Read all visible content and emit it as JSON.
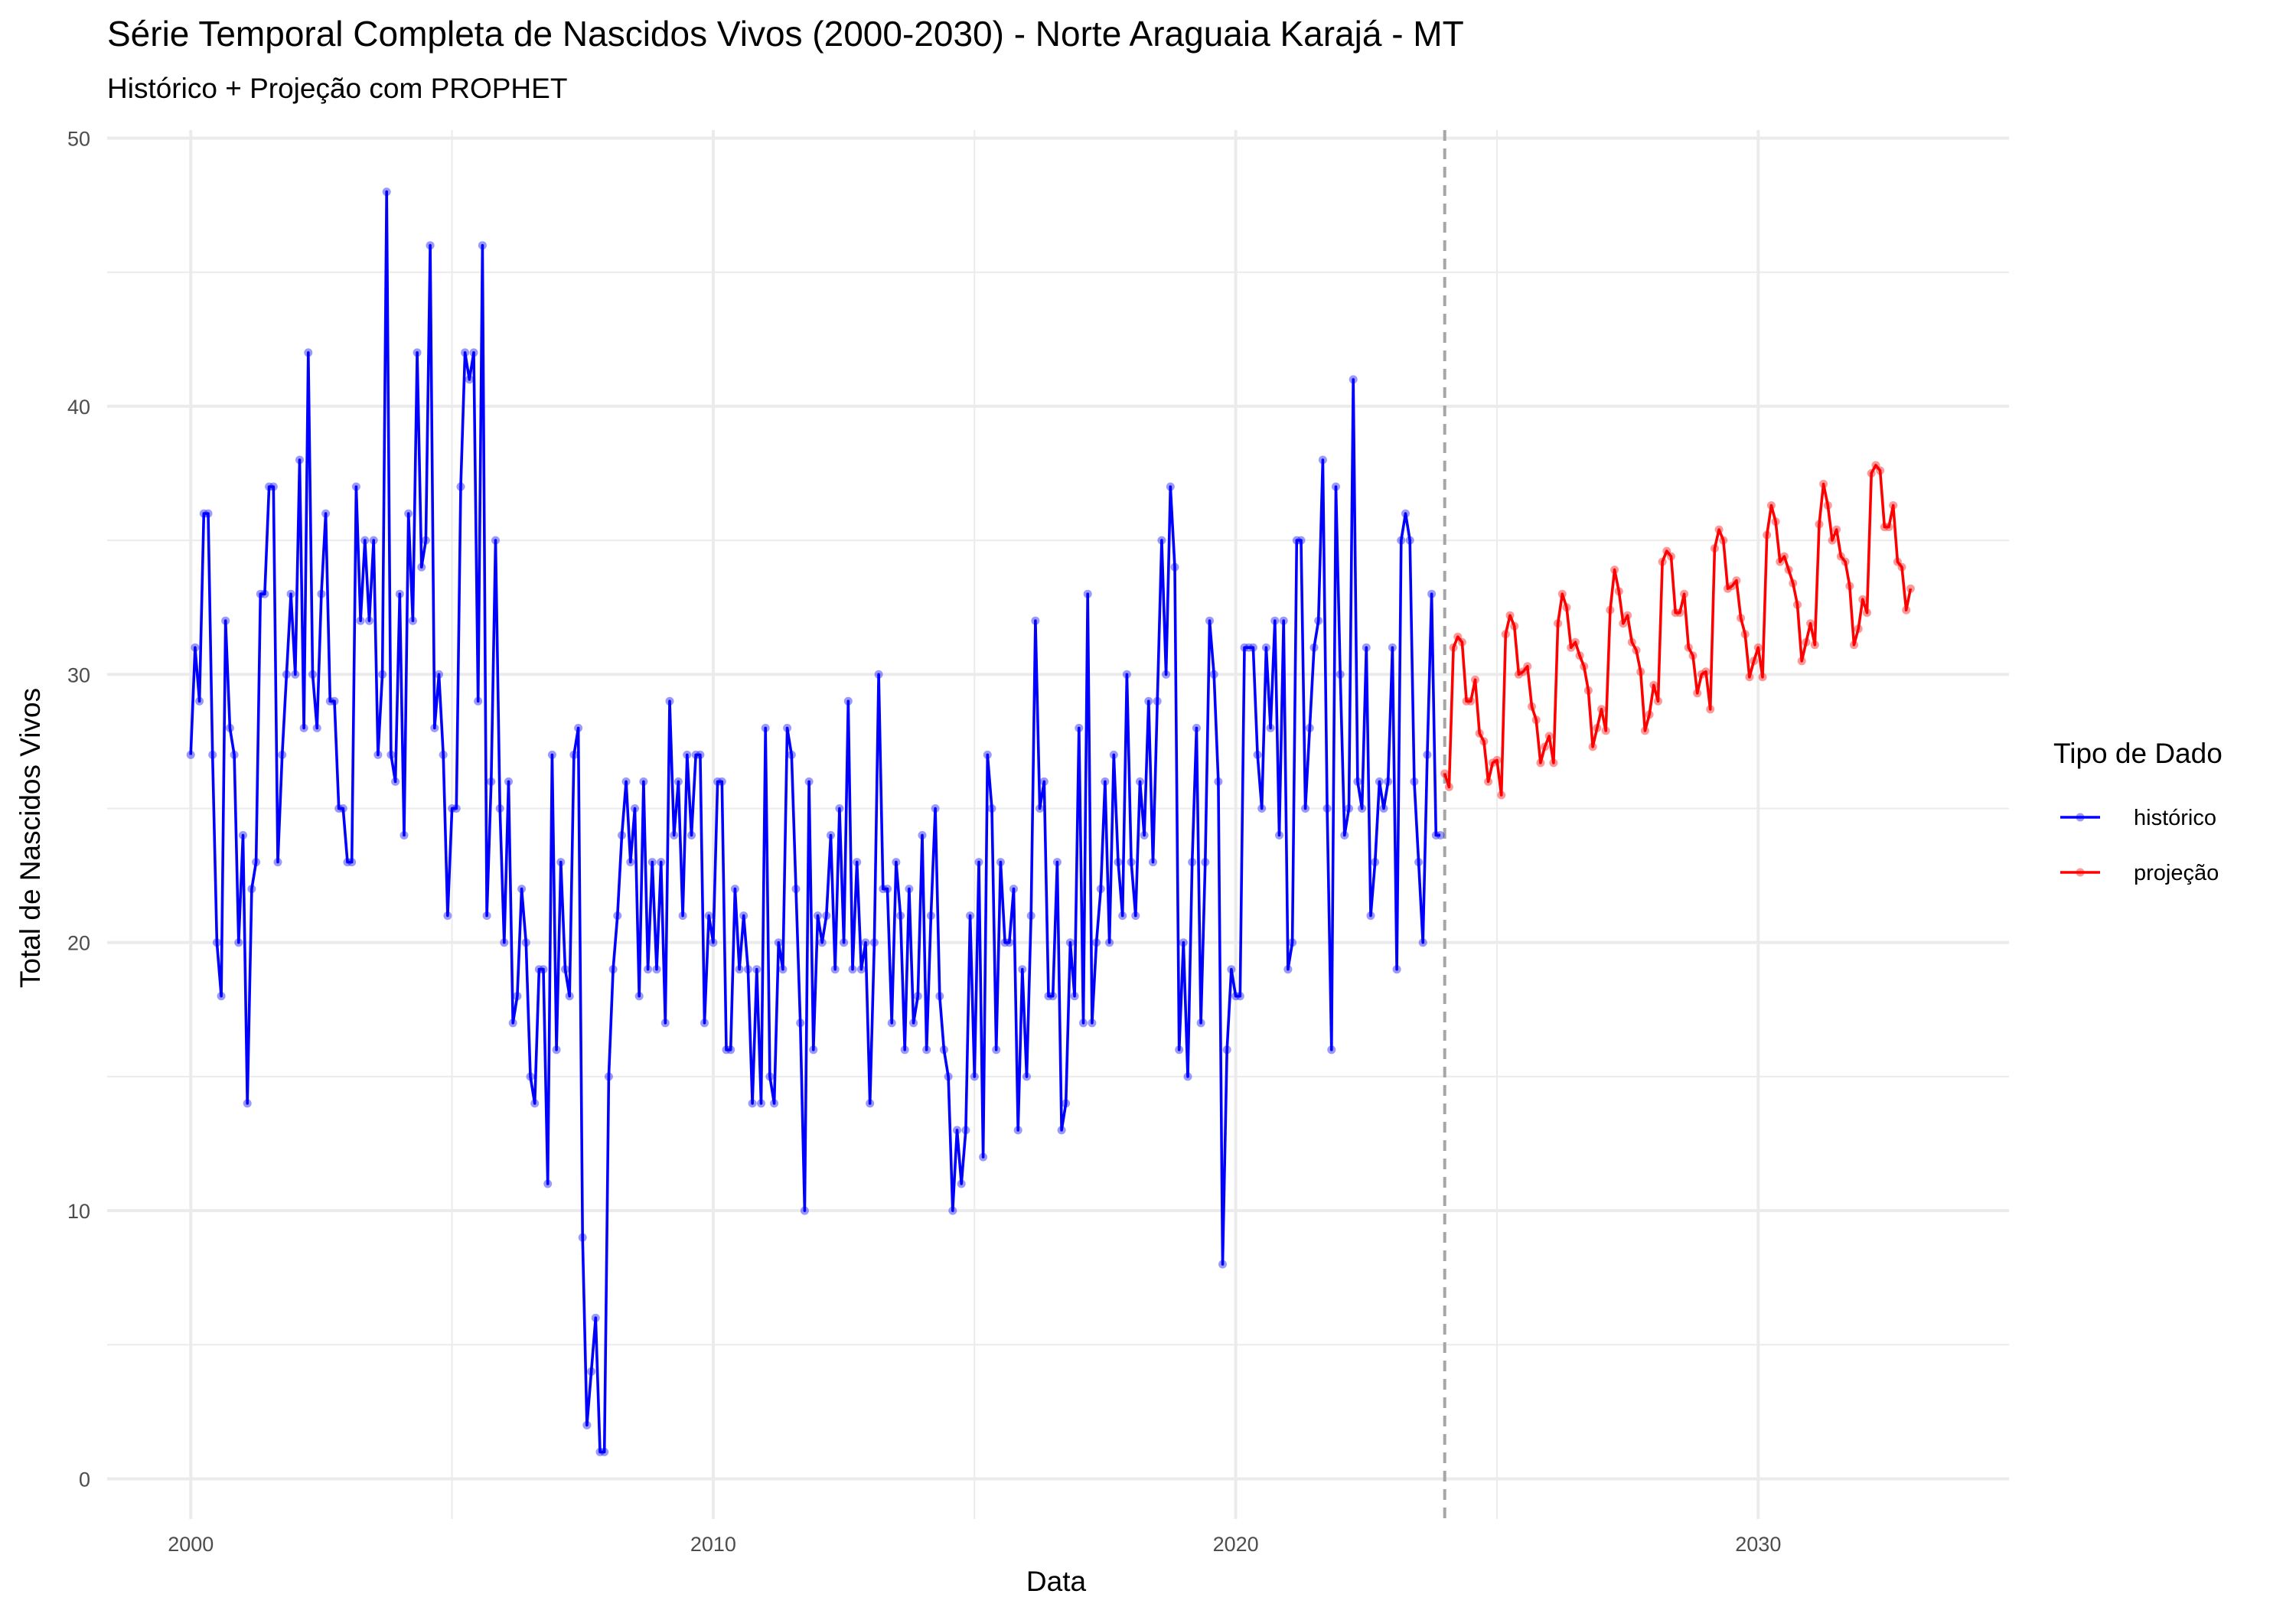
{
  "chart_data": {
    "type": "line",
    "title": "Série Temporal Completa de Nascidos Vivos (2000-2030) -  Norte Araguaia Karajá - MT",
    "subtitle": "Histórico + Projeção com PROPHET",
    "xlabel": "Data",
    "ylabel": "Total de Nascidos Vivos",
    "xlim": [
      1998.4,
      2034.8
    ],
    "ylim": [
      -1.5,
      50.3
    ],
    "x_ticks": [
      2000,
      2010,
      2020,
      2030
    ],
    "y_ticks": [
      0,
      10,
      20,
      30,
      40,
      50
    ],
    "grid": true,
    "legend": {
      "title": "Tipo de Dado",
      "placement": "right"
    },
    "forecast_start": 2024.0,
    "series": [
      {
        "name": "histórico",
        "color": "#0000ff",
        "start_year": 2000,
        "frequency": "monthly",
        "values": [
          27,
          31,
          29,
          36,
          36,
          27,
          20,
          18,
          32,
          28,
          27,
          20,
          24,
          14,
          22,
          23,
          33,
          33,
          37,
          37,
          23,
          27,
          30,
          33,
          30,
          38,
          28,
          42,
          30,
          28,
          33,
          36,
          29,
          29,
          25,
          25,
          23,
          23,
          37,
          32,
          35,
          32,
          35,
          27,
          30,
          48,
          27,
          26,
          33,
          24,
          36,
          32,
          42,
          34,
          35,
          46,
          28,
          30,
          27,
          21,
          25,
          25,
          37,
          42,
          41,
          42,
          29,
          46,
          21,
          26,
          35,
          25,
          20,
          26,
          17,
          18,
          22,
          20,
          15,
          14,
          19,
          19,
          11,
          27,
          16,
          23,
          19,
          18,
          27,
          28,
          9,
          2,
          4,
          6,
          1,
          1,
          15,
          19,
          21,
          24,
          26,
          23,
          25,
          18,
          26,
          19,
          23,
          19,
          23,
          17,
          29,
          24,
          26,
          21,
          27,
          24,
          27,
          27,
          17,
          21,
          20,
          26,
          26,
          16,
          16,
          22,
          19,
          21,
          19,
          14,
          19,
          14,
          28,
          15,
          14,
          20,
          19,
          28,
          27,
          22,
          17,
          10,
          26,
          16,
          21,
          20,
          21,
          24,
          19,
          25,
          20,
          29,
          19,
          23,
          19,
          20,
          14,
          20,
          30,
          22,
          22,
          17,
          23,
          21,
          16,
          22,
          17,
          18,
          24,
          16,
          21,
          25,
          18,
          16,
          15,
          10,
          13,
          11,
          13,
          21,
          15,
          23,
          12,
          27,
          25,
          16,
          23,
          20,
          20,
          22,
          13,
          19,
          15,
          21,
          32,
          25,
          26,
          18,
          18,
          23,
          13,
          14,
          20,
          18,
          28,
          17,
          33,
          17,
          20,
          22,
          26,
          20,
          27,
          23,
          21,
          30,
          23,
          21,
          26,
          24,
          29,
          23,
          29,
          35,
          30,
          37,
          34,
          16,
          20,
          15,
          23,
          28,
          17,
          23,
          32,
          30,
          26,
          8,
          16,
          19,
          18,
          18,
          31,
          31,
          31,
          27,
          25,
          31,
          28,
          32,
          24,
          32,
          19,
          20,
          35,
          35,
          25,
          28,
          31,
          32,
          38,
          25,
          16,
          37,
          30,
          24,
          25,
          41,
          26,
          25,
          31,
          21,
          23,
          26,
          25,
          26,
          31,
          19,
          35,
          36,
          35,
          26,
          23,
          20,
          27,
          33,
          24,
          24
        ]
      },
      {
        "name": "projeção",
        "color": "#ff0000",
        "start_year": 2024,
        "frequency": "monthly",
        "values": [
          26.3,
          25.8,
          31.0,
          31.4,
          31.2,
          29.0,
          29.0,
          29.8,
          27.8,
          27.5,
          26.0,
          26.7,
          26.8,
          25.5,
          31.5,
          32.2,
          31.8,
          30.0,
          30.1,
          30.3,
          28.8,
          28.3,
          26.7,
          27.3,
          27.7,
          26.7,
          31.9,
          33.0,
          32.5,
          31.0,
          31.2,
          30.7,
          30.3,
          29.4,
          27.3,
          28.0,
          28.7,
          27.9,
          32.4,
          33.9,
          33.1,
          31.9,
          32.2,
          31.2,
          30.9,
          30.1,
          27.9,
          28.5,
          29.6,
          29.0,
          34.2,
          34.6,
          34.4,
          32.3,
          32.3,
          33.0,
          31.0,
          30.7,
          29.3,
          30.0,
          30.1,
          28.7,
          34.7,
          35.4,
          35.0,
          33.2,
          33.3,
          33.5,
          32.1,
          31.5,
          29.9,
          30.5,
          31.0,
          29.9,
          35.2,
          36.3,
          35.7,
          34.2,
          34.4,
          33.9,
          33.4,
          32.6,
          30.5,
          31.2,
          31.9,
          31.1,
          35.6,
          37.1,
          36.3,
          35.0,
          35.4,
          34.4,
          34.2,
          33.3,
          31.1,
          31.7,
          32.8,
          32.3,
          37.5,
          37.8,
          37.6,
          35.5,
          35.5,
          36.3,
          34.2,
          34.0,
          32.4,
          33.2
        ]
      }
    ]
  }
}
